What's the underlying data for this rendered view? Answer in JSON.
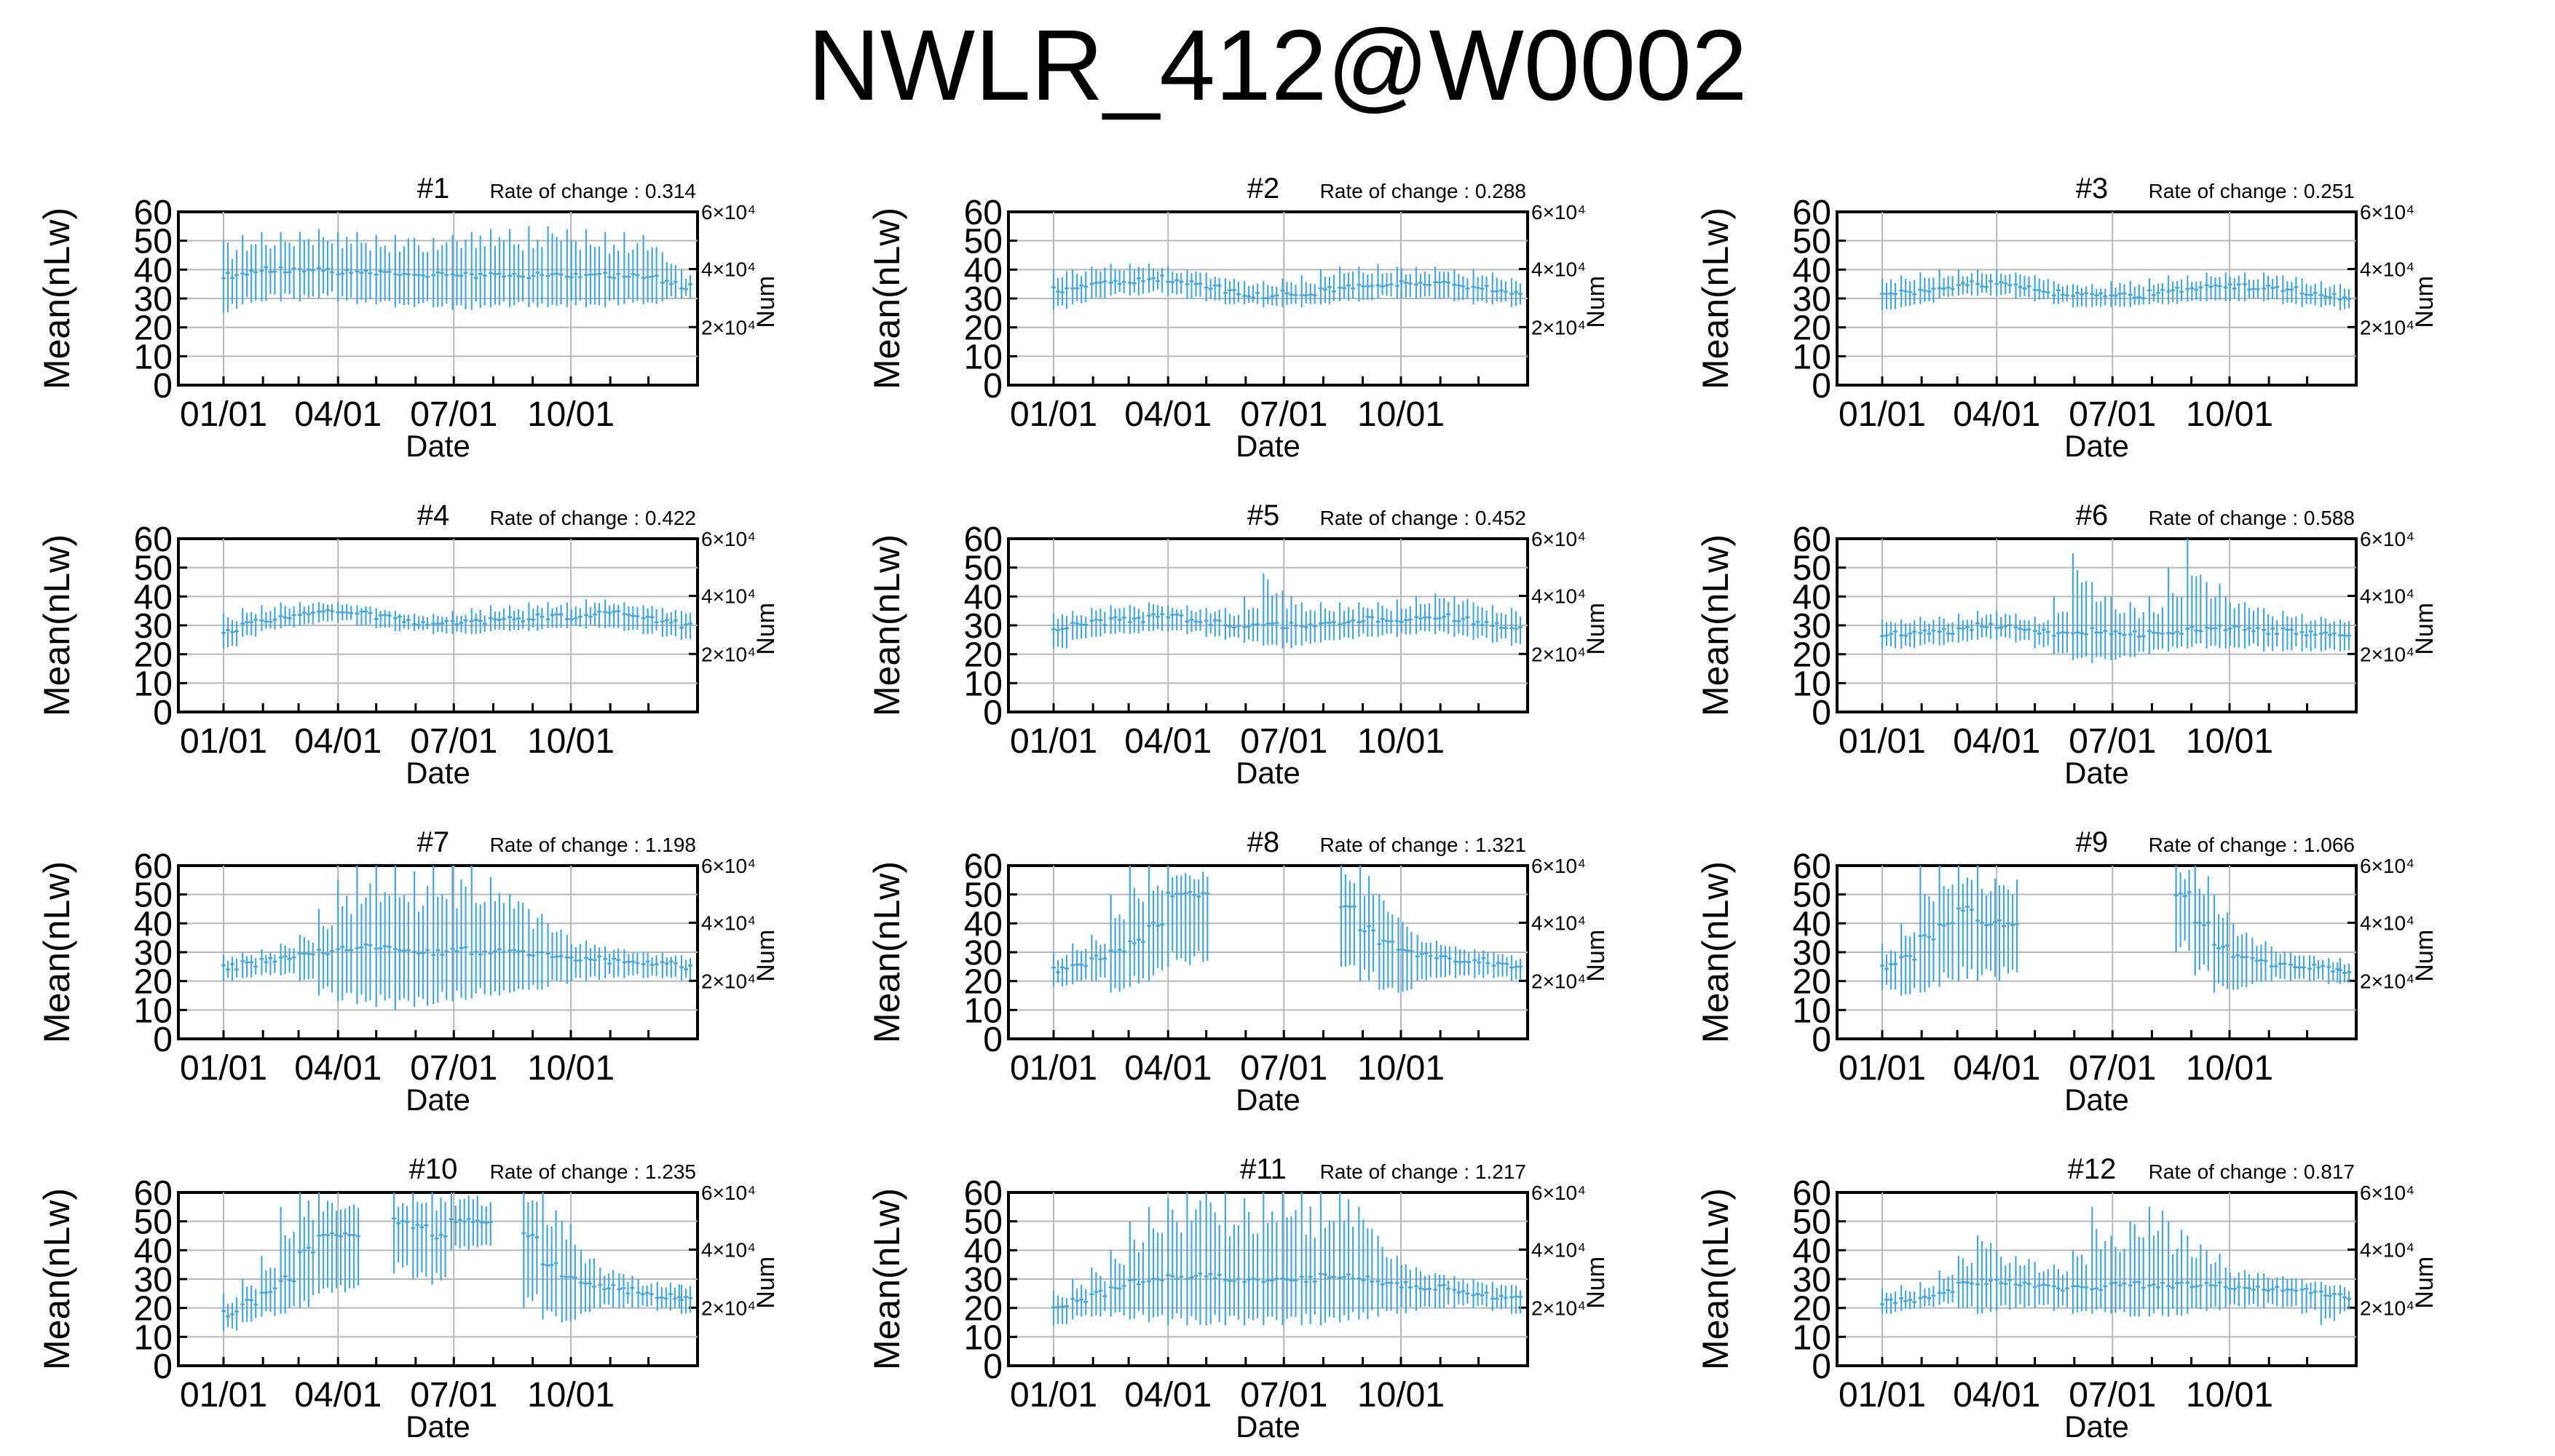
{
  "title": "NWLR_412@W0002",
  "chart_data": {
    "type": "line",
    "layout": "4x3 grid of small multiples",
    "shared": {
      "xlabel": "Date",
      "ylabel": "Mean(nLw)",
      "y2label": "Num",
      "xlim": [
        "01/01",
        "12/31"
      ],
      "xticks": [
        "01/01",
        "04/01",
        "07/01",
        "10/01"
      ],
      "ylim": [
        0,
        60
      ],
      "yticks": [
        0,
        10,
        20,
        30,
        40,
        50,
        60
      ],
      "y2ticks": [
        "2×10⁴",
        "4×10⁴",
        "6×10⁴"
      ],
      "grid": true,
      "rate_label": "Rate of change : ",
      "series_color": "#4aa6d6"
    },
    "panels": [
      {
        "name": "#1",
        "rate_of_change": "0.314",
        "x": [
          "01/01",
          "01/16",
          "01/31",
          "02/15",
          "03/02",
          "03/17",
          "04/01",
          "04/16",
          "05/01",
          "05/16",
          "05/31",
          "06/15",
          "06/30",
          "07/15",
          "07/30",
          "08/14",
          "08/29",
          "09/13",
          "09/28",
          "10/13",
          "10/28",
          "11/12",
          "11/27",
          "12/12",
          "12/27"
        ],
        "y": [
          38,
          39,
          40,
          40,
          40,
          40,
          39,
          39,
          39,
          38,
          38,
          38,
          38,
          38,
          38,
          38,
          38,
          38,
          38,
          38,
          38,
          38,
          37,
          36,
          34
        ],
        "y_low": [
          25,
          28,
          29,
          29,
          29,
          30,
          29,
          28,
          28,
          27,
          27,
          27,
          26,
          26,
          27,
          27,
          27,
          27,
          27,
          27,
          27,
          28,
          28,
          29,
          30
        ],
        "y_high": [
          50,
          52,
          53,
          53,
          53,
          54,
          53,
          53,
          52,
          52,
          51,
          51,
          52,
          53,
          54,
          54,
          55,
          55,
          54,
          54,
          53,
          53,
          52,
          46,
          40
        ]
      },
      {
        "name": "#2",
        "rate_of_change": "0.288",
        "x": [
          "01/01",
          "01/16",
          "01/31",
          "02/15",
          "03/02",
          "03/17",
          "04/01",
          "04/16",
          "05/01",
          "05/16",
          "05/31",
          "06/15",
          "06/30",
          "07/15",
          "07/30",
          "08/14",
          "08/29",
          "09/13",
          "09/28",
          "10/13",
          "10/28",
          "11/12",
          "11/27",
          "12/12",
          "12/27"
        ],
        "y": [
          33,
          34,
          35,
          36,
          36,
          37,
          36,
          35,
          34,
          32,
          31,
          31,
          32,
          32,
          33,
          34,
          34,
          35,
          35,
          35,
          35,
          34,
          34,
          33,
          32
        ],
        "y_low": [
          26,
          28,
          30,
          31,
          31,
          32,
          31,
          30,
          29,
          28,
          28,
          27,
          27,
          27,
          28,
          29,
          29,
          30,
          30,
          30,
          30,
          29,
          28,
          28,
          27
        ],
        "y_high": [
          40,
          40,
          41,
          42,
          42,
          42,
          41,
          40,
          39,
          37,
          36,
          36,
          37,
          38,
          40,
          41,
          41,
          42,
          41,
          41,
          41,
          40,
          40,
          39,
          37
        ]
      },
      {
        "name": "#3",
        "rate_of_change": "0.251",
        "x": [
          "01/01",
          "01/16",
          "01/31",
          "02/15",
          "03/02",
          "03/17",
          "04/01",
          "04/16",
          "05/01",
          "05/16",
          "05/31",
          "06/15",
          "06/30",
          "07/15",
          "07/30",
          "08/14",
          "08/29",
          "09/13",
          "09/28",
          "10/13",
          "10/28",
          "11/12",
          "11/27",
          "12/12",
          "12/27"
        ],
        "y": [
          31,
          32,
          33,
          34,
          35,
          35,
          35,
          34,
          33,
          32,
          31,
          31,
          31,
          31,
          32,
          33,
          33,
          34,
          34,
          34,
          34,
          33,
          32,
          31,
          30
        ],
        "y_low": [
          26,
          27,
          28,
          30,
          31,
          31,
          31,
          30,
          29,
          28,
          27,
          27,
          27,
          27,
          28,
          28,
          29,
          29,
          29,
          29,
          29,
          28,
          27,
          27,
          26
        ],
        "y_high": [
          37,
          38,
          39,
          40,
          40,
          40,
          40,
          39,
          38,
          36,
          35,
          35,
          36,
          36,
          37,
          38,
          38,
          39,
          39,
          39,
          39,
          38,
          37,
          36,
          35
        ]
      },
      {
        "name": "#4",
        "rate_of_change": "0.422",
        "x": [
          "01/01",
          "01/16",
          "01/31",
          "02/15",
          "03/02",
          "03/17",
          "04/01",
          "04/16",
          "05/01",
          "05/16",
          "05/31",
          "06/15",
          "06/30",
          "07/15",
          "07/30",
          "08/14",
          "08/29",
          "09/13",
          "09/28",
          "10/13",
          "10/28",
          "11/12",
          "11/27",
          "12/12",
          "12/27"
        ],
        "y": [
          28,
          31,
          32,
          33,
          34,
          35,
          35,
          34,
          33,
          32,
          31,
          31,
          31,
          31,
          32,
          32,
          33,
          33,
          33,
          34,
          34,
          33,
          32,
          31,
          30
        ],
        "y_low": [
          22,
          26,
          28,
          29,
          30,
          31,
          31,
          30,
          29,
          28,
          28,
          27,
          27,
          27,
          28,
          28,
          28,
          29,
          29,
          29,
          29,
          28,
          27,
          26,
          25
        ],
        "y_high": [
          34,
          36,
          37,
          38,
          38,
          38,
          38,
          37,
          36,
          35,
          34,
          34,
          35,
          36,
          37,
          37,
          38,
          38,
          38,
          39,
          39,
          38,
          37,
          36,
          35
        ]
      },
      {
        "name": "#5",
        "rate_of_change": "0.452",
        "x": [
          "01/01",
          "01/16",
          "01/31",
          "02/15",
          "03/02",
          "03/17",
          "04/01",
          "04/16",
          "05/01",
          "05/16",
          "05/31",
          "06/15",
          "06/30",
          "07/15",
          "07/30",
          "08/14",
          "08/29",
          "09/13",
          "09/28",
          "10/13",
          "10/28",
          "11/12",
          "11/27",
          "12/12",
          "12/27"
        ],
        "y": [
          28,
          30,
          31,
          32,
          32,
          33,
          33,
          32,
          31,
          30,
          30,
          30,
          30,
          30,
          31,
          31,
          32,
          32,
          32,
          33,
          33,
          32,
          31,
          30,
          29
        ],
        "y_low": [
          22,
          25,
          26,
          27,
          27,
          28,
          28,
          27,
          26,
          25,
          24,
          23,
          22,
          23,
          24,
          25,
          26,
          26,
          26,
          27,
          27,
          26,
          25,
          24,
          23
        ],
        "y_high": [
          34,
          35,
          36,
          37,
          37,
          38,
          37,
          37,
          36,
          36,
          40,
          48,
          42,
          38,
          38,
          38,
          38,
          38,
          39,
          40,
          41,
          40,
          38,
          37,
          36
        ]
      },
      {
        "name": "#6",
        "rate_of_change": "0.588",
        "x": [
          "01/01",
          "01/16",
          "01/31",
          "02/15",
          "03/02",
          "03/17",
          "04/01",
          "04/16",
          "05/01",
          "05/16",
          "05/31",
          "06/15",
          "06/30",
          "07/15",
          "07/30",
          "08/14",
          "08/29",
          "09/13",
          "09/28",
          "10/13",
          "10/28",
          "11/12",
          "11/27",
          "12/12",
          "12/27"
        ],
        "y": [
          27,
          27,
          28,
          28,
          29,
          30,
          30,
          29,
          28,
          27,
          27,
          28,
          27,
          27,
          28,
          28,
          29,
          29,
          29,
          29,
          28,
          28,
          27,
          27,
          26
        ],
        "y_low": [
          22,
          22,
          23,
          23,
          24,
          25,
          25,
          24,
          22,
          20,
          18,
          17,
          18,
          19,
          20,
          21,
          22,
          22,
          22,
          22,
          21,
          21,
          21,
          21,
          21
        ],
        "y_high": [
          32,
          32,
          33,
          33,
          34,
          35,
          35,
          34,
          33,
          40,
          55,
          45,
          40,
          38,
          40,
          50,
          60,
          45,
          40,
          38,
          36,
          35,
          34,
          33,
          32
        ]
      },
      {
        "name": "#7",
        "rate_of_change": "1.198",
        "x": [
          "01/01",
          "01/16",
          "01/31",
          "02/15",
          "03/02",
          "03/17",
          "04/01",
          "04/16",
          "05/01",
          "05/16",
          "05/31",
          "06/15",
          "06/30",
          "07/15",
          "07/30",
          "08/14",
          "08/29",
          "09/13",
          "09/28",
          "10/13",
          "10/28",
          "11/12",
          "11/27",
          "12/12",
          "12/27"
        ],
        "y": [
          25,
          26,
          27,
          28,
          29,
          30,
          31,
          32,
          32,
          31,
          30,
          30,
          31,
          30,
          30,
          30,
          29,
          29,
          28,
          28,
          27,
          27,
          26,
          26,
          25
        ],
        "y_low": [
          20,
          21,
          22,
          22,
          20,
          15,
          13,
          12,
          11,
          10,
          11,
          12,
          13,
          14,
          15,
          16,
          17,
          18,
          19,
          20,
          21,
          21,
          21,
          21,
          20
        ],
        "y_high": [
          29,
          30,
          31,
          33,
          36,
          45,
          55,
          60,
          60,
          60,
          58,
          60,
          60,
          60,
          56,
          50,
          45,
          40,
          36,
          34,
          32,
          31,
          30,
          30,
          29
        ]
      },
      {
        "name": "#8",
        "rate_of_change": "1.321",
        "x": [
          "01/01",
          "01/16",
          "01/31",
          "02/15",
          "03/02",
          "03/17",
          "04/01",
          "08/15",
          "08/30",
          "09/14",
          "09/29",
          "10/14",
          "10/29",
          "11/13",
          "11/28",
          "12/13",
          "12/27"
        ],
        "y": [
          24,
          26,
          28,
          30,
          34,
          40,
          50,
          45,
          38,
          33,
          30,
          29,
          28,
          27,
          27,
          26,
          25
        ],
        "y_low": [
          18,
          19,
          20,
          16,
          18,
          20,
          25,
          25,
          20,
          17,
          16,
          20,
          21,
          21,
          21,
          21,
          20
        ],
        "y_high": [
          30,
          33,
          36,
          50,
          60,
          60,
          60,
          60,
          60,
          50,
          42,
          36,
          34,
          32,
          31,
          30,
          29
        ]
      },
      {
        "name": "#9",
        "rate_of_change": "1.066",
        "x": [
          "01/01",
          "01/16",
          "01/31",
          "02/15",
          "03/02",
          "03/17",
          "08/20",
          "09/04",
          "09/19",
          "10/04",
          "10/19",
          "11/03",
          "11/18",
          "12/03",
          "12/18",
          "12/27"
        ],
        "y": [
          25,
          28,
          35,
          40,
          45,
          40,
          50,
          40,
          32,
          28,
          27,
          26,
          25,
          25,
          24,
          23
        ],
        "y_low": [
          17,
          15,
          16,
          18,
          20,
          20,
          30,
          22,
          16,
          17,
          19,
          20,
          20,
          20,
          19,
          19
        ],
        "y_high": [
          33,
          40,
          60,
          60,
          60,
          60,
          60,
          60,
          50,
          40,
          35,
          32,
          30,
          29,
          28,
          28
        ]
      },
      {
        "name": "#10",
        "rate_of_change": "1.235",
        "x": [
          "01/01",
          "01/16",
          "01/31",
          "02/15",
          "03/02",
          "03/17",
          "05/15",
          "05/30",
          "06/14",
          "06/29",
          "08/25",
          "09/09",
          "09/24",
          "10/09",
          "10/24",
          "11/08",
          "11/23",
          "12/08",
          "12/27"
        ],
        "y": [
          18,
          22,
          26,
          30,
          40,
          45,
          50,
          48,
          45,
          50,
          45,
          35,
          30,
          28,
          27,
          26,
          25,
          24,
          23
        ],
        "y_low": [
          12,
          15,
          17,
          18,
          20,
          25,
          32,
          30,
          28,
          40,
          20,
          16,
          15,
          18,
          20,
          20,
          20,
          19,
          18
        ],
        "y_high": [
          25,
          30,
          38,
          55,
          60,
          60,
          60,
          60,
          60,
          60,
          60,
          60,
          50,
          40,
          34,
          32,
          30,
          29,
          28
        ]
      },
      {
        "name": "#11",
        "rate_of_change": "1.217",
        "x": [
          "01/01",
          "01/16",
          "01/31",
          "02/15",
          "03/02",
          "03/17",
          "04/01",
          "04/16",
          "05/01",
          "05/16",
          "05/31",
          "06/15",
          "06/30",
          "07/15",
          "07/30",
          "08/14",
          "08/29",
          "09/13",
          "09/28",
          "10/13",
          "10/28",
          "11/12",
          "11/27",
          "12/12",
          "12/27"
        ],
        "y": [
          20,
          23,
          25,
          27,
          29,
          30,
          31,
          31,
          31,
          30,
          30,
          30,
          30,
          30,
          31,
          31,
          30,
          29,
          28,
          27,
          27,
          26,
          25,
          24,
          23
        ],
        "y_low": [
          14,
          16,
          17,
          17,
          16,
          15,
          14,
          14,
          14,
          14,
          14,
          14,
          14,
          14,
          14,
          15,
          16,
          17,
          18,
          19,
          20,
          20,
          20,
          19,
          18
        ],
        "y_high": [
          26,
          30,
          34,
          40,
          50,
          55,
          58,
          60,
          60,
          60,
          58,
          60,
          60,
          60,
          60,
          60,
          55,
          45,
          38,
          34,
          32,
          31,
          30,
          29,
          28
        ]
      },
      {
        "name": "#12",
        "rate_of_change": "0.817",
        "x": [
          "01/01",
          "01/16",
          "01/31",
          "02/15",
          "03/02",
          "03/17",
          "04/01",
          "04/16",
          "05/01",
          "05/16",
          "05/31",
          "06/15",
          "06/30",
          "07/15",
          "07/30",
          "08/14",
          "08/29",
          "09/13",
          "09/28",
          "10/13",
          "10/28",
          "11/12",
          "11/27",
          "12/12",
          "12/27"
        ],
        "y": [
          22,
          23,
          24,
          26,
          28,
          29,
          29,
          28,
          28,
          27,
          27,
          27,
          28,
          28,
          28,
          28,
          28,
          28,
          27,
          27,
          27,
          26,
          26,
          25,
          24
        ],
        "y_low": [
          18,
          19,
          20,
          21,
          20,
          18,
          19,
          20,
          20,
          19,
          18,
          18,
          18,
          17,
          17,
          17,
          18,
          19,
          20,
          20,
          20,
          20,
          18,
          14,
          18
        ],
        "y_high": [
          27,
          28,
          29,
          33,
          38,
          45,
          40,
          38,
          36,
          35,
          40,
          55,
          45,
          50,
          55,
          50,
          45,
          40,
          34,
          33,
          32,
          31,
          30,
          29,
          28
        ]
      }
    ]
  }
}
